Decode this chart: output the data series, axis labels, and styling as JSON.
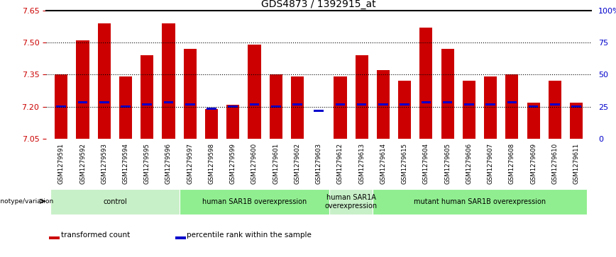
{
  "title": "GDS4873 / 1392915_at",
  "samples": [
    "GSM1279591",
    "GSM1279592",
    "GSM1279593",
    "GSM1279594",
    "GSM1279595",
    "GSM1279596",
    "GSM1279597",
    "GSM1279598",
    "GSM1279599",
    "GSM1279600",
    "GSM1279601",
    "GSM1279602",
    "GSM1279603",
    "GSM1279612",
    "GSM1279613",
    "GSM1279614",
    "GSM1279615",
    "GSM1279604",
    "GSM1279605",
    "GSM1279606",
    "GSM1279607",
    "GSM1279608",
    "GSM1279609",
    "GSM1279610",
    "GSM1279611"
  ],
  "transformed_count": [
    7.35,
    7.51,
    7.59,
    7.34,
    7.44,
    7.59,
    7.47,
    7.19,
    7.21,
    7.49,
    7.35,
    7.34,
    7.05,
    7.34,
    7.44,
    7.37,
    7.32,
    7.57,
    7.47,
    7.32,
    7.34,
    7.35,
    7.22,
    7.32,
    7.22
  ],
  "percentile_rank": [
    7.2,
    7.22,
    7.22,
    7.2,
    7.21,
    7.22,
    7.21,
    7.19,
    7.2,
    7.21,
    7.2,
    7.21,
    7.18,
    7.21,
    7.21,
    7.21,
    7.21,
    7.22,
    7.22,
    7.21,
    7.21,
    7.22,
    7.2,
    7.21,
    7.2
  ],
  "ymin": 7.05,
  "ymax": 7.65,
  "yticks": [
    7.05,
    7.2,
    7.35,
    7.5,
    7.65
  ],
  "ytick_labels": [
    "7.05",
    "7.20",
    "7.35",
    "7.50",
    "7.65"
  ],
  "right_yticks": [
    0,
    25,
    50,
    75,
    100
  ],
  "right_ytick_labels": [
    "0",
    "25",
    "50",
    "75",
    "100%"
  ],
  "hlines": [
    7.2,
    7.35,
    7.5
  ],
  "groups": [
    {
      "label": "control",
      "start": 0,
      "end": 6,
      "color": "#c8f0c8"
    },
    {
      "label": "human SAR1B overexpression",
      "start": 6,
      "end": 13,
      "color": "#90ee90"
    },
    {
      "label": "human SAR1A\noverexpression",
      "start": 13,
      "end": 15,
      "color": "#c8f0c8"
    },
    {
      "label": "mutant human SAR1B overexpression",
      "start": 15,
      "end": 25,
      "color": "#90ee90"
    }
  ],
  "bar_color": "#cc0000",
  "marker_color": "#0000cc",
  "bar_width": 0.6,
  "left_tick_color": "#cc0000",
  "right_tick_color": "#0000cc",
  "genotype_label": "genotype/variation",
  "legend_items": [
    {
      "label": "transformed count",
      "color": "#cc0000"
    },
    {
      "label": "percentile rank within the sample",
      "color": "#0000cc"
    }
  ],
  "figure_bg": "#ffffff",
  "plot_bg": "#ffffff",
  "xticklabel_bg": "#d8d8d8",
  "xlim_left": -0.7,
  "xlim_right": 24.7
}
